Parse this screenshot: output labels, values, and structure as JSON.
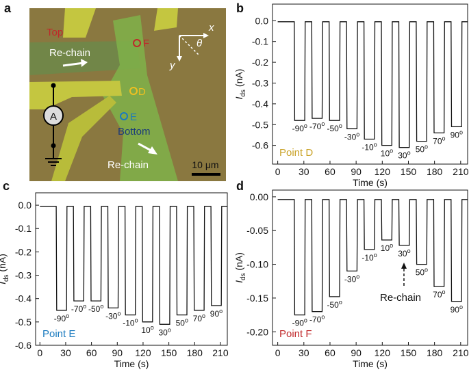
{
  "micrograph": {
    "panel": "a",
    "top": "Top",
    "point_f": "F",
    "point_d": "D",
    "point_e": "E",
    "bottom": "Bottom",
    "rechain_top": "Re-chain",
    "rechain_bottom": "Re-chain",
    "scale": "10 μm",
    "axis_x": "x",
    "axis_y": "y",
    "angle": "θ",
    "meter": "A"
  },
  "chart_data": [
    {
      "type": "line",
      "panel": "b",
      "xlabel": "Time (s)",
      "ylabel": {
        "main": "I",
        "sub": "ds",
        "unit": " (nA)"
      },
      "point_label": "Point D",
      "point_color": "#c9a227",
      "xlim": [
        -6,
        218
      ],
      "xticks": [
        0,
        30,
        60,
        90,
        120,
        150,
        180,
        210
      ],
      "ylim": [
        -0.69,
        0.08
      ],
      "yticks": [
        {
          "value": 0,
          "label": "0.0"
        },
        -0.1,
        -0.2,
        -0.3,
        -0.4,
        -0.5,
        -0.6
      ],
      "series": [
        {
          "color": "#111111",
          "x": [
            0,
            19,
            19.5,
            31,
            31.5,
            39,
            39.5,
            51,
            51.5,
            59,
            59.5,
            71,
            71.5,
            79,
            79.5,
            91,
            91.5,
            99,
            99.5,
            111,
            111.5,
            119,
            119.5,
            131,
            131.5,
            139,
            139.5,
            151,
            151.5,
            159,
            159.5,
            171,
            171.5,
            179,
            179.5,
            191,
            191.5,
            199,
            199.5,
            211,
            211.5,
            218
          ],
          "values": [
            -0.005,
            -0.005,
            -0.48,
            -0.48,
            -0.005,
            -0.005,
            -0.47,
            -0.47,
            -0.005,
            -0.005,
            -0.48,
            -0.48,
            -0.005,
            -0.005,
            -0.52,
            -0.52,
            -0.005,
            -0.005,
            -0.57,
            -0.57,
            -0.005,
            -0.005,
            -0.6,
            -0.6,
            -0.005,
            -0.005,
            -0.61,
            -0.61,
            -0.005,
            -0.005,
            -0.58,
            -0.58,
            -0.005,
            -0.005,
            -0.54,
            -0.54,
            -0.005,
            -0.005,
            -0.51,
            -0.51,
            -0.005,
            -0.005
          ]
        }
      ],
      "annotations": [
        {
          "text": "-90",
          "sup": "o"
        },
        {
          "text": "-70",
          "sup": "o"
        },
        {
          "text": "-50",
          "sup": "o"
        },
        {
          "text": "-30",
          "sup": "o"
        },
        {
          "text": "-10",
          "sup": "o"
        },
        {
          "text": "10",
          "sup": "o"
        },
        {
          "text": "30",
          "sup": "o"
        },
        {
          "text": "50",
          "sup": "o"
        },
        {
          "text": "70",
          "sup": "o"
        },
        {
          "text": "90",
          "sup": "o"
        }
      ]
    },
    {
      "type": "line",
      "panel": "c",
      "xlabel": "Time (s)",
      "ylabel": {
        "main": "I",
        "sub": "ds",
        "unit": " (nA)"
      },
      "point_label": "Point E",
      "point_color": "#1a7abf",
      "xlim": [
        -5,
        218
      ],
      "xticks": [
        0,
        30,
        60,
        90,
        120,
        150,
        180,
        210
      ],
      "ylim": [
        -0.6,
        0.053
      ],
      "yticks": [
        {
          "value": 0,
          "label": "0.0"
        },
        -0.1,
        -0.2,
        -0.3,
        -0.4,
        -0.5,
        -0.6
      ],
      "series": [
        {
          "color": "#111111",
          "x": [
            0,
            19,
            19.5,
            31,
            31.5,
            39,
            39.5,
            51,
            51.5,
            59,
            59.5,
            71,
            71.5,
            79,
            79.5,
            91,
            91.5,
            99,
            99.5,
            111,
            111.5,
            119,
            119.5,
            131,
            131.5,
            139,
            139.5,
            151,
            151.5,
            159,
            159.5,
            171,
            171.5,
            179,
            179.5,
            191,
            191.5,
            199,
            199.5,
            211,
            211.5,
            218
          ],
          "values": [
            -0.005,
            -0.005,
            -0.45,
            -0.45,
            -0.005,
            -0.005,
            -0.41,
            -0.41,
            -0.005,
            -0.005,
            -0.41,
            -0.41,
            -0.005,
            -0.005,
            -0.44,
            -0.44,
            -0.005,
            -0.005,
            -0.47,
            -0.47,
            -0.005,
            -0.005,
            -0.5,
            -0.5,
            -0.005,
            -0.005,
            -0.51,
            -0.51,
            -0.005,
            -0.005,
            -0.47,
            -0.47,
            -0.005,
            -0.005,
            -0.45,
            -0.45,
            -0.005,
            -0.005,
            -0.43,
            -0.43,
            -0.005,
            -0.005
          ]
        }
      ],
      "annotations": [
        {
          "text": "-90",
          "sup": "o"
        },
        {
          "text": "-70",
          "sup": "o"
        },
        {
          "text": "-50",
          "sup": "o"
        },
        {
          "text": "-30",
          "sup": "o"
        },
        {
          "text": "-10",
          "sup": "o"
        },
        {
          "text": "10",
          "sup": "o"
        },
        {
          "text": "30",
          "sup": "o"
        },
        {
          "text": "50",
          "sup": "o"
        },
        {
          "text": "70",
          "sup": "o"
        },
        {
          "text": "90",
          "sup": "o"
        }
      ]
    },
    {
      "type": "line",
      "panel": "d",
      "xlabel": "Time (s)",
      "ylabel": {
        "main": "I",
        "sub": "ds",
        "unit": " (nA)"
      },
      "point_label": "Point F",
      "point_color": "#c0282a",
      "note": "Re-chain",
      "xlim": [
        -6,
        218
      ],
      "xticks": [
        0,
        30,
        60,
        90,
        120,
        150,
        180,
        210
      ],
      "ylim": [
        -0.22,
        0.01
      ],
      "yticks": [
        {
          "value": 0,
          "label": "0.00"
        },
        -0.05,
        {
          "value": -0.1,
          "label": "-0.10"
        },
        -0.15,
        {
          "value": -0.2,
          "label": "-0.20"
        }
      ],
      "series": [
        {
          "color": "#111111",
          "x": [
            0,
            19,
            19.5,
            31,
            31.5,
            39,
            39.5,
            51,
            51.5,
            59,
            59.5,
            71,
            71.5,
            79,
            79.5,
            91,
            91.5,
            99,
            99.5,
            111,
            111.5,
            119,
            119.5,
            131,
            131.5,
            139,
            139.5,
            151,
            151.5,
            159,
            159.5,
            171,
            171.5,
            179,
            179.5,
            191,
            191.5,
            199,
            199.5,
            211,
            211.5,
            218
          ],
          "values": [
            -0.004,
            -0.004,
            -0.175,
            -0.175,
            -0.004,
            -0.004,
            -0.17,
            -0.17,
            -0.004,
            -0.004,
            -0.148,
            -0.148,
            -0.004,
            -0.004,
            -0.11,
            -0.11,
            -0.004,
            -0.004,
            -0.078,
            -0.078,
            -0.004,
            -0.004,
            -0.064,
            -0.064,
            -0.004,
            -0.004,
            -0.072,
            -0.072,
            -0.004,
            -0.004,
            -0.1,
            -0.1,
            -0.004,
            -0.004,
            -0.133,
            -0.133,
            -0.004,
            -0.004,
            -0.155,
            -0.155,
            -0.004,
            -0.004
          ]
        }
      ],
      "annotations": [
        {
          "text": "-90",
          "sup": "o"
        },
        {
          "text": "-70",
          "sup": "o"
        },
        {
          "text": "-50",
          "sup": "o"
        },
        {
          "text": "-30",
          "sup": "o"
        },
        {
          "text": "-10",
          "sup": "o"
        },
        {
          "text": "10",
          "sup": "o"
        },
        {
          "text": "30",
          "sup": "o"
        },
        {
          "text": "50",
          "sup": "o"
        },
        {
          "text": "70",
          "sup": "o"
        },
        {
          "text": "90",
          "sup": "o"
        }
      ]
    }
  ]
}
